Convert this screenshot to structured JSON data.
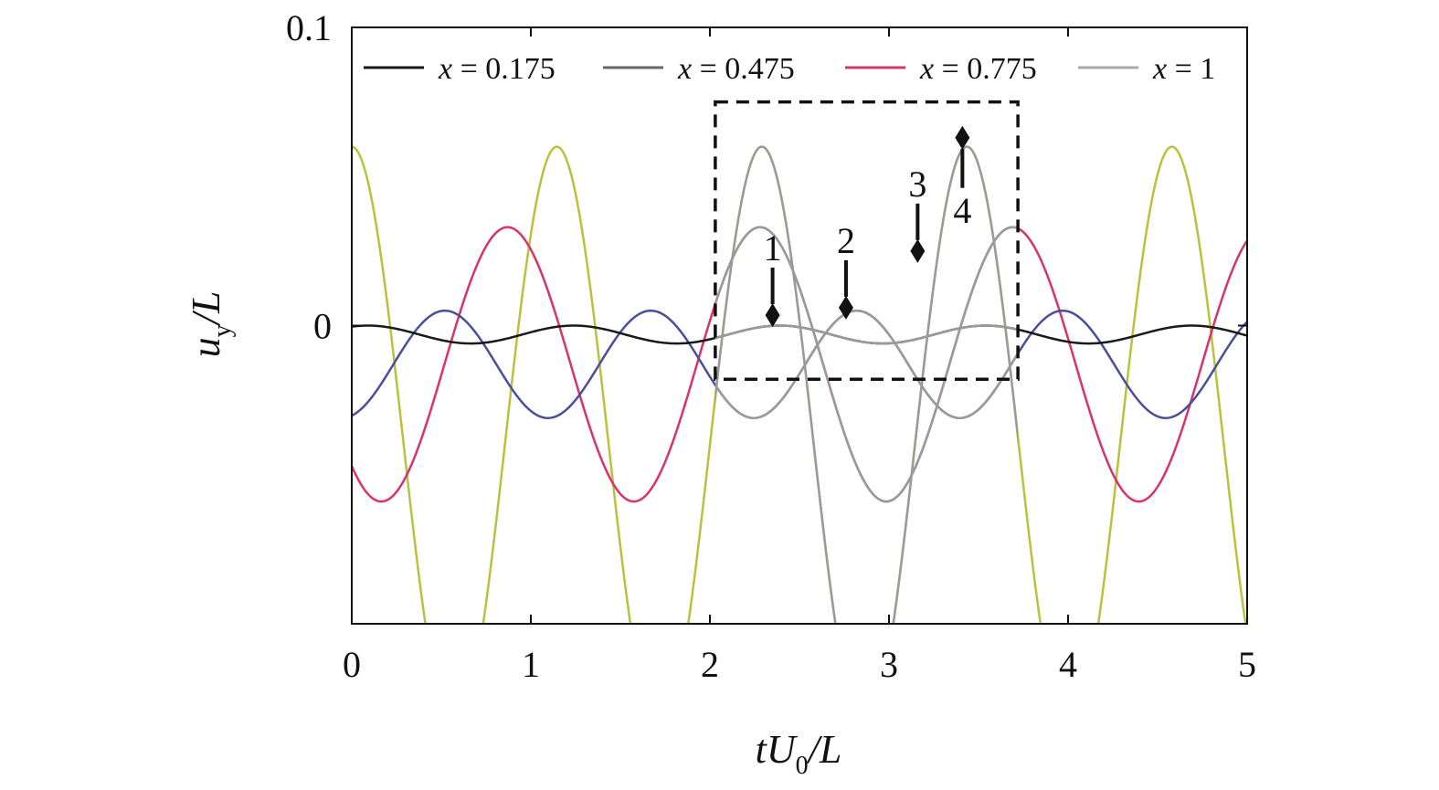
{
  "chart_data": {
    "type": "line",
    "x_axis": {
      "range": [
        0,
        5
      ],
      "ticks": [
        0,
        1,
        2,
        3,
        4,
        5
      ],
      "tick_labels": [
        "0",
        "1",
        "2",
        "3",
        "4",
        "5"
      ],
      "label_parts": {
        "a": "tU",
        "sub": "0",
        "b": "/L"
      }
    },
    "y_axis": {
      "range": [
        -0.1,
        0.1
      ],
      "tick_values": [
        0,
        0.1
      ],
      "tick_labels": [
        "0",
        "0.1"
      ],
      "label_parts": {
        "a": "u",
        "sub": "y",
        "b": "/L"
      }
    },
    "grid": false,
    "legend_placement": "top",
    "series": [
      {
        "name": "x = 0.175",
        "legend_var": "x",
        "legend_rest": " = 0.175",
        "color": "#1a1a1a",
        "legend_color": "#1a1a1a",
        "amplitude": 0.003,
        "period": 1.15,
        "phase": 0.09,
        "offset": -0.003
      },
      {
        "name": "x = 0.475",
        "legend_var": "x",
        "legend_rest": " = 0.475",
        "color": "#4a4f9a",
        "legend_color": "#666666",
        "amplitude": 0.018,
        "period": 1.15,
        "phase": 0.52,
        "offset": -0.013
      },
      {
        "name": "x = 0.775",
        "legend_var": "x",
        "legend_rest": " = 0.775",
        "color": "#d8336b",
        "legend_color": "#d8336b",
        "amplitude": 0.046,
        "period": 1.41,
        "phase": 0.87,
        "offset": -0.013
      },
      {
        "name": "x = 1",
        "legend_var": "x",
        "legend_rest": " = 1",
        "color": "#b8c23a",
        "legend_color": "#aaaaaa",
        "amplitude": 0.098,
        "period": 1.145,
        "phase": 0.0,
        "offset": -0.038
      }
    ],
    "highlight_box": {
      "x": [
        2.03,
        3.72
      ],
      "y": [
        -0.018,
        0.075
      ]
    },
    "highlight_color": "#9a9a9a",
    "markers": [
      {
        "label": "1",
        "x": 2.35,
        "y": 0.0035,
        "label_side": "above"
      },
      {
        "label": "2",
        "x": 2.76,
        "y": 0.006,
        "label_side": "above"
      },
      {
        "label": "3",
        "x": 3.16,
        "y": 0.025,
        "label_side": "above"
      },
      {
        "label": "4",
        "x": 3.41,
        "y": 0.063,
        "label_side": "below"
      }
    ]
  }
}
